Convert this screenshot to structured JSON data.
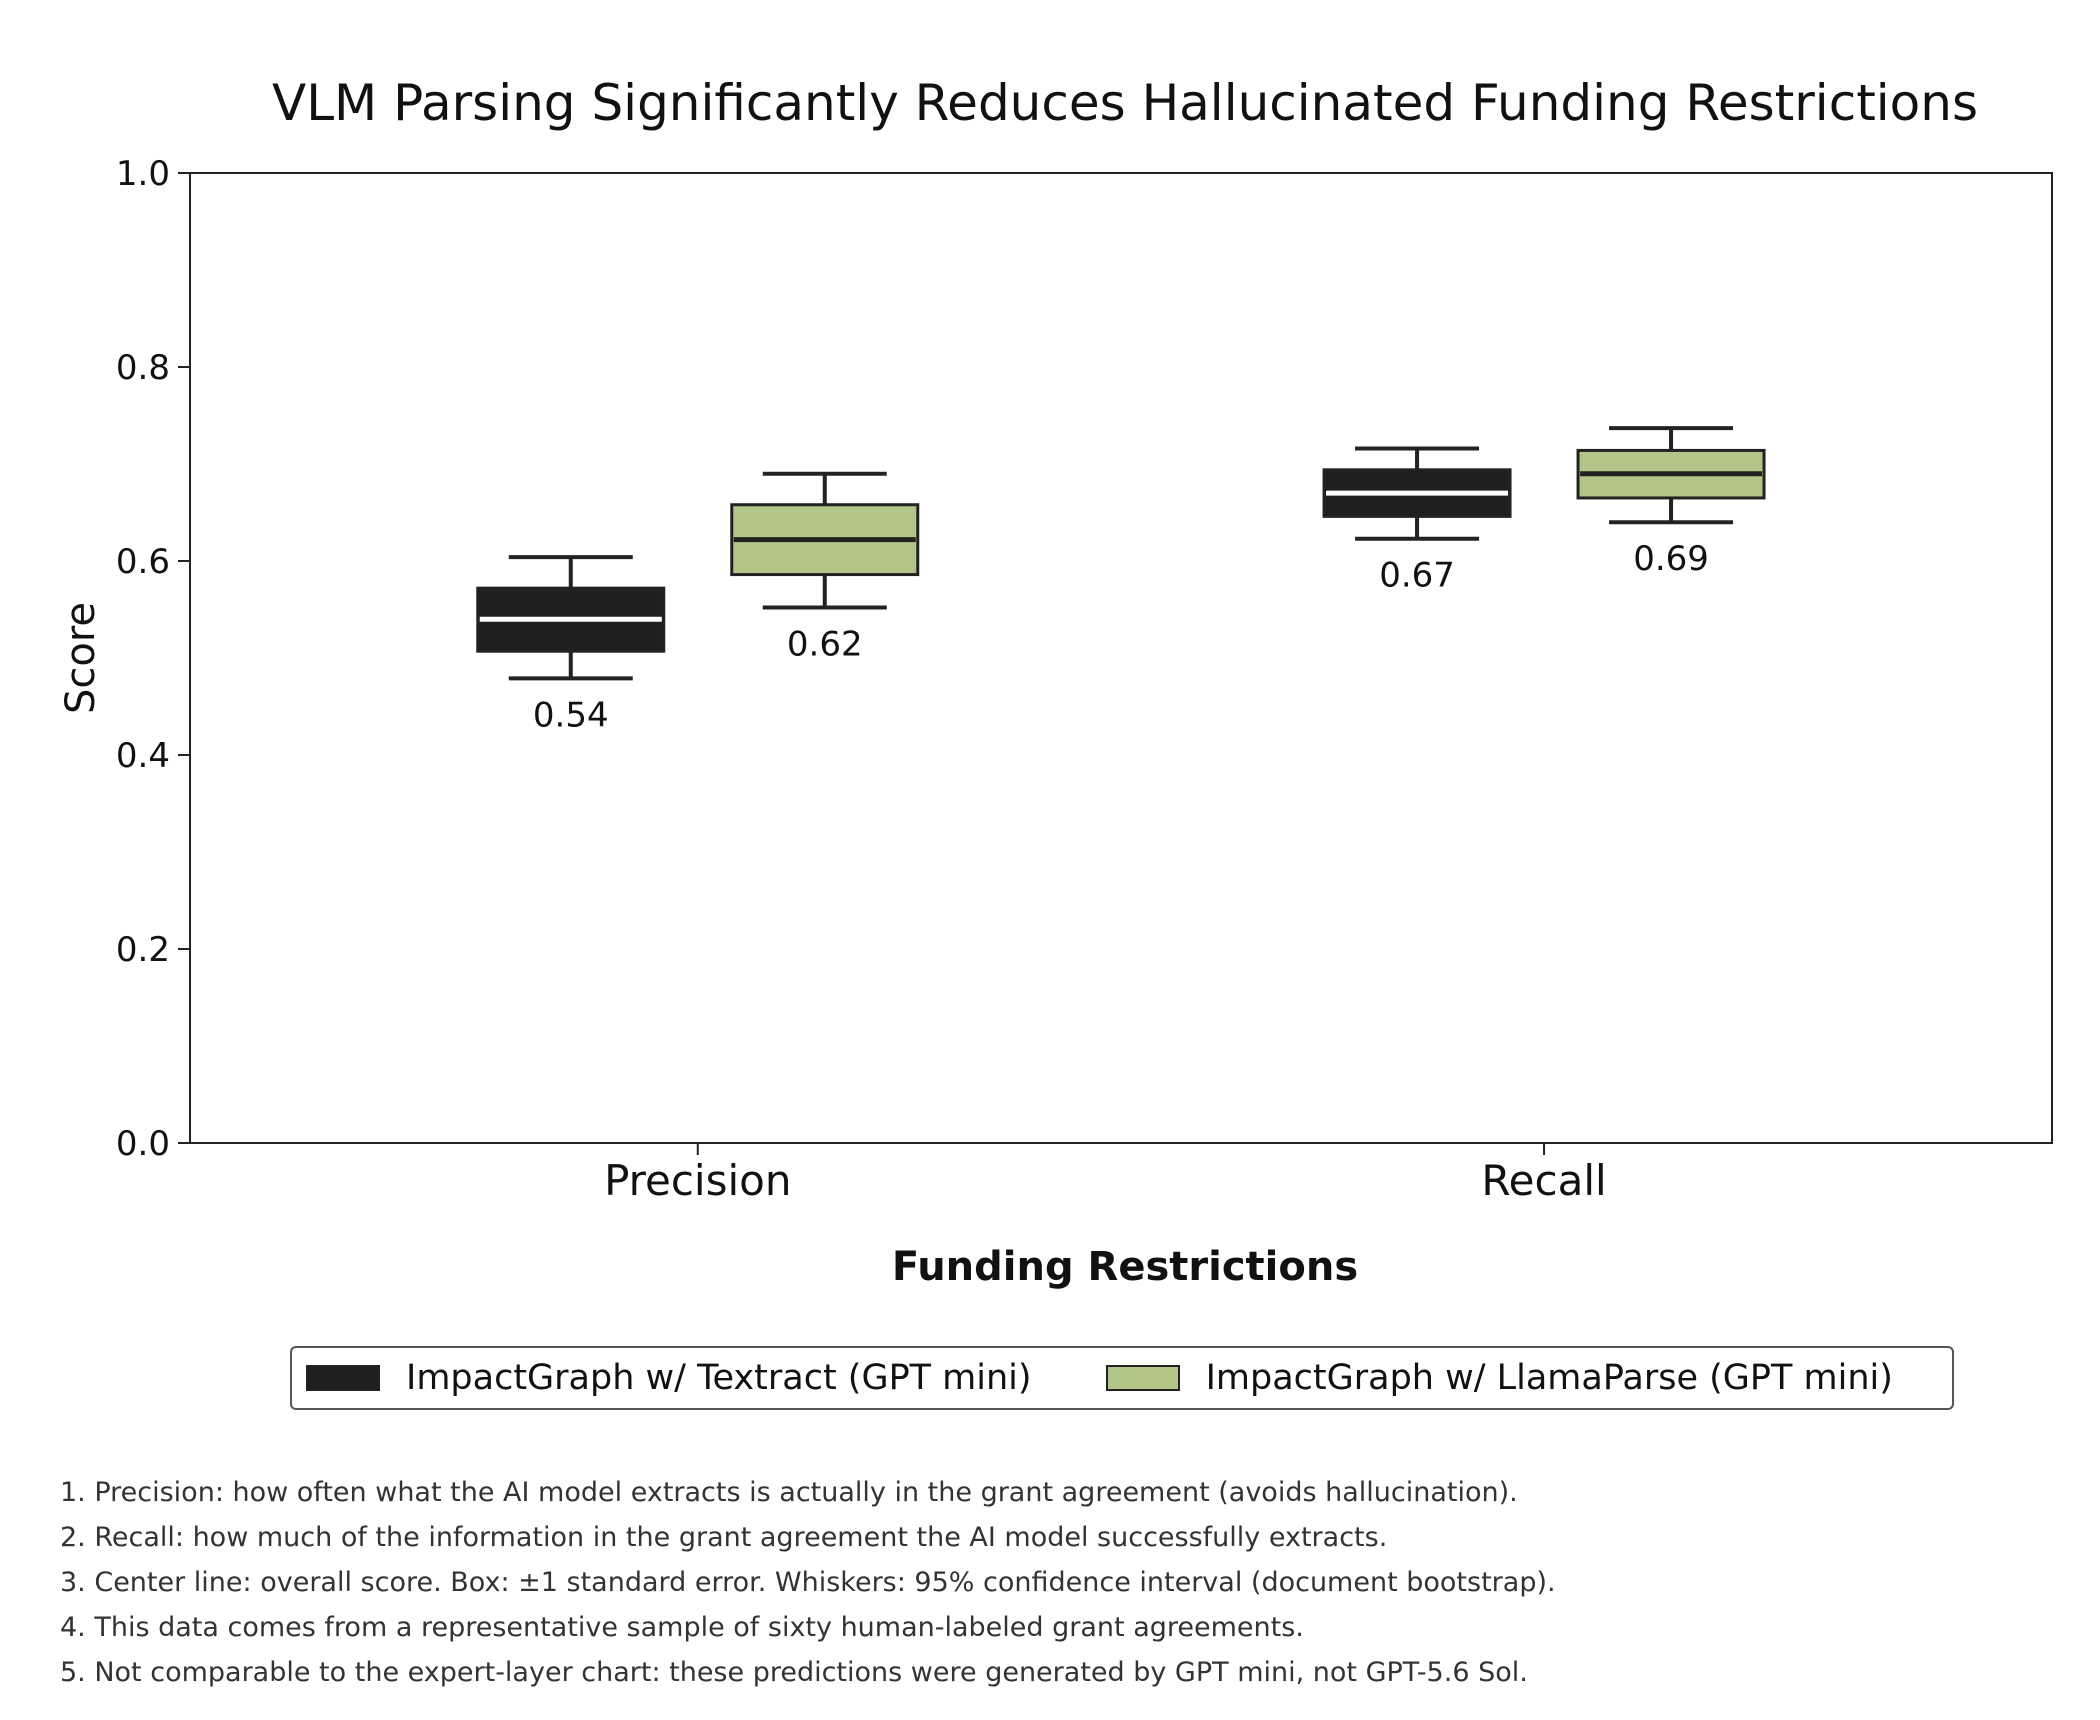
{
  "chart_data": {
    "type": "box",
    "title": "VLM Parsing Significantly Reduces Hallucinated Funding Restrictions",
    "xlabel": "Funding Restrictions",
    "ylabel": "Score",
    "ylim": [
      0,
      1
    ],
    "yticks": [
      "0.0",
      "0.2",
      "0.4",
      "0.6",
      "0.8",
      "1.0"
    ],
    "categories": [
      "Precision",
      "Recall"
    ],
    "grid": false,
    "legend_position": "bottom-center",
    "series": [
      {
        "name": "ImpactGraph w/ Textract (GPT mini)",
        "color": "#1f1f1f",
        "median_color": "#ffffff",
        "values": [
          {
            "center": 0.54,
            "box_low": 0.507,
            "box_high": 0.572,
            "whisker_low": 0.479,
            "whisker_high": 0.604,
            "label": "0.54"
          },
          {
            "center": 0.67,
            "box_low": 0.646,
            "box_high": 0.694,
            "whisker_low": 0.623,
            "whisker_high": 0.716,
            "label": "0.67"
          }
        ]
      },
      {
        "name": "ImpactGraph w/ LlamaParse (GPT mini)",
        "color": "#b3c68a",
        "median_color": "#222222",
        "values": [
          {
            "center": 0.622,
            "box_low": 0.586,
            "box_high": 0.658,
            "whisker_low": 0.552,
            "whisker_high": 0.69,
            "label": "0.62"
          },
          {
            "center": 0.69,
            "box_low": 0.665,
            "box_high": 0.714,
            "whisker_low": 0.64,
            "whisker_high": 0.737,
            "label": "0.69"
          }
        ]
      }
    ]
  },
  "notes": [
    "1. Precision: how often what the AI model extracts is actually in the grant agreement (avoids hallucination).",
    "2. Recall: how much of the information in the grant agreement the AI model successfully extracts.",
    "3. Center line: overall score. Box: ±1 standard error. Whiskers: 95% confidence interval (document bootstrap).",
    "4. This data comes from a representative sample of sixty human-labeled grant agreements.",
    "5. Not comparable to the expert-layer chart: these predictions were generated by GPT mini, not GPT-5.6 Sol."
  ]
}
